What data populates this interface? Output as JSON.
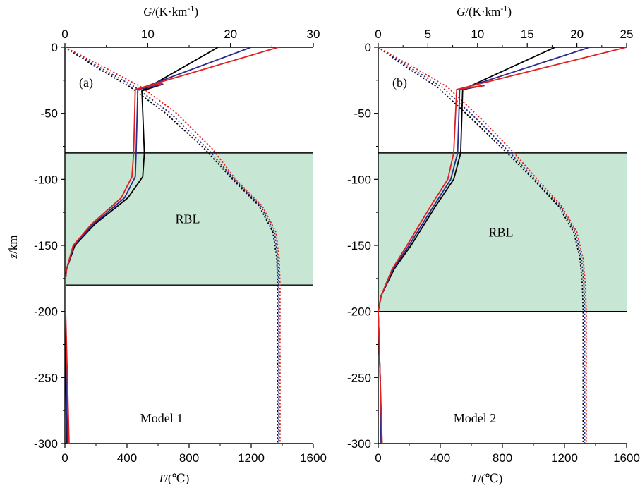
{
  "figure": {
    "ylabel_italic": "z",
    "ylabel_rest": "/km",
    "top_label_italic": "G",
    "top_label_rest": "/(K·km",
    "top_label_sup": "-1",
    "top_label_close": ")",
    "bottom_label_italic": "T",
    "bottom_label_rest": "/(℃)"
  },
  "chart_data": [
    {
      "type": "line",
      "panel_label": "(a)",
      "model_label": "Model 1",
      "band_label": "RBL",
      "ylim": [
        -300,
        0
      ],
      "yticks": [
        0,
        -50,
        -100,
        -150,
        -200,
        -250,
        -300
      ],
      "temp_axis": {
        "label": "T/(℃)",
        "lim": [
          0,
          1600
        ],
        "ticks": [
          0,
          400,
          800,
          1200,
          1600
        ]
      },
      "gradient_axis": {
        "label": "G/(K·km-1)",
        "lim": [
          0,
          30
        ],
        "ticks": [
          0,
          10,
          20,
          30
        ]
      },
      "rbl_band": [
        -80,
        -180
      ],
      "colors": {
        "black": "#000000",
        "blue": "#2b2b8f",
        "red": "#e02020",
        "band": "#c8e6d4"
      },
      "temperature_series": [
        {
          "name": "black",
          "color": "#000000",
          "style": "dotted",
          "points": [
            [
              0,
              0
            ],
            [
              200,
              -15
            ],
            [
              420,
              -30
            ],
            [
              650,
              -50
            ],
            [
              900,
              -77
            ],
            [
              1080,
              -100
            ],
            [
              1250,
              -120
            ],
            [
              1340,
              -140
            ],
            [
              1365,
              -160
            ],
            [
              1370,
              -180
            ],
            [
              1370,
              -200
            ],
            [
              1370,
              -250
            ],
            [
              1370,
              -300
            ]
          ]
        },
        {
          "name": "blue",
          "color": "#2b2b8f",
          "style": "dotted",
          "points": [
            [
              0,
              0
            ],
            [
              220,
              -15
            ],
            [
              450,
              -30
            ],
            [
              680,
              -50
            ],
            [
              920,
              -77
            ],
            [
              1090,
              -100
            ],
            [
              1260,
              -120
            ],
            [
              1350,
              -140
            ],
            [
              1372,
              -160
            ],
            [
              1378,
              -180
            ],
            [
              1378,
              -200
            ],
            [
              1378,
              -250
            ],
            [
              1378,
              -300
            ]
          ]
        },
        {
          "name": "red",
          "color": "#e02020",
          "style": "dotted",
          "points": [
            [
              0,
              0
            ],
            [
              250,
              -15
            ],
            [
              490,
              -30
            ],
            [
              720,
              -50
            ],
            [
              950,
              -77
            ],
            [
              1100,
              -100
            ],
            [
              1270,
              -120
            ],
            [
              1360,
              -140
            ],
            [
              1380,
              -160
            ],
            [
              1386,
              -180
            ],
            [
              1386,
              -200
            ],
            [
              1386,
              -250
            ],
            [
              1386,
              -300
            ]
          ]
        }
      ],
      "gradient_series": [
        {
          "name": "black",
          "color": "#000000",
          "style": "solid",
          "points": [
            [
              18.5,
              0
            ],
            [
              9.3,
              -33
            ],
            [
              9.6,
              -80
            ],
            [
              9.4,
              -98
            ],
            [
              7.6,
              -114
            ],
            [
              3.6,
              -134
            ],
            [
              1.2,
              -150
            ],
            [
              0.2,
              -168
            ],
            [
              0.0,
              -180
            ],
            [
              0.1,
              -250
            ],
            [
              0.2,
              -300
            ]
          ]
        },
        {
          "name": "blue",
          "color": "#2b2b8f",
          "style": "solid",
          "points": [
            [
              22.5,
              0
            ],
            [
              8.8,
              -32
            ],
            [
              8.6,
              -80
            ],
            [
              8.5,
              -98
            ],
            [
              7.2,
              -114
            ],
            [
              3.4,
              -134
            ],
            [
              1.1,
              -150
            ],
            [
              0.2,
              -168
            ],
            [
              0.0,
              -180
            ],
            [
              0.2,
              -250
            ],
            [
              0.3,
              -300
            ]
          ]
        },
        {
          "name": "red",
          "color": "#e02020",
          "style": "solid",
          "points": [
            [
              25.8,
              0
            ],
            [
              8.5,
              -32
            ],
            [
              8.3,
              -80
            ],
            [
              8.1,
              -98
            ],
            [
              6.8,
              -114
            ],
            [
              3.2,
              -134
            ],
            [
              1.0,
              -150
            ],
            [
              0.2,
              -168
            ],
            [
              0.0,
              -180
            ],
            [
              0.3,
              -250
            ],
            [
              0.5,
              -300
            ]
          ]
        }
      ],
      "knee_lines": [
        {
          "color": "#000000",
          "points": [
            [
              9.3,
              -33
            ],
            [
              11.8,
              -28
            ]
          ]
        },
        {
          "color": "#2b2b8f",
          "points": [
            [
              8.8,
              -32
            ],
            [
              11.9,
              -28
            ]
          ]
        },
        {
          "color": "#e02020",
          "points": [
            [
              8.5,
              -32
            ],
            [
              11.8,
              -27
            ]
          ]
        }
      ]
    },
    {
      "type": "line",
      "panel_label": "(b)",
      "model_label": "Model 2",
      "band_label": "RBL",
      "ylim": [
        -300,
        0
      ],
      "yticks": [
        0,
        -50,
        -100,
        -150,
        -200,
        -250,
        -300
      ],
      "temp_axis": {
        "label": "T/(℃)",
        "lim": [
          0,
          1600
        ],
        "ticks": [
          0,
          400,
          800,
          1200,
          1600
        ]
      },
      "gradient_axis": {
        "label": "G/(K·km-1)",
        "lim": [
          0,
          25
        ],
        "ticks": [
          0,
          5,
          10,
          15,
          20,
          25
        ]
      },
      "rbl_band": [
        -80,
        -200
      ],
      "colors": {
        "black": "#000000",
        "blue": "#2b2b8f",
        "red": "#e02020",
        "band": "#c8e6d4"
      },
      "temperature_series": [
        {
          "name": "black",
          "color": "#000000",
          "style": "dotted",
          "points": [
            [
              0,
              0
            ],
            [
              180,
              -15
            ],
            [
              380,
              -30
            ],
            [
              610,
              -55
            ],
            [
              830,
              -80
            ],
            [
              1000,
              -100
            ],
            [
              1160,
              -120
            ],
            [
              1260,
              -140
            ],
            [
              1300,
              -160
            ],
            [
              1315,
              -180
            ],
            [
              1320,
              -200
            ],
            [
              1320,
              -250
            ],
            [
              1320,
              -300
            ]
          ]
        },
        {
          "name": "blue",
          "color": "#2b2b8f",
          "style": "dotted",
          "points": [
            [
              0,
              0
            ],
            [
              200,
              -15
            ],
            [
              410,
              -30
            ],
            [
              640,
              -55
            ],
            [
              850,
              -80
            ],
            [
              1010,
              -100
            ],
            [
              1170,
              -120
            ],
            [
              1270,
              -140
            ],
            [
              1310,
              -160
            ],
            [
              1325,
              -180
            ],
            [
              1330,
              -200
            ],
            [
              1330,
              -250
            ],
            [
              1330,
              -300
            ]
          ]
        },
        {
          "name": "red",
          "color": "#e02020",
          "style": "dotted",
          "points": [
            [
              0,
              0
            ],
            [
              225,
              -15
            ],
            [
              445,
              -30
            ],
            [
              670,
              -55
            ],
            [
              875,
              -80
            ],
            [
              1025,
              -100
            ],
            [
              1180,
              -120
            ],
            [
              1280,
              -140
            ],
            [
              1320,
              -160
            ],
            [
              1335,
              -180
            ],
            [
              1340,
              -200
            ],
            [
              1340,
              -250
            ],
            [
              1340,
              -300
            ]
          ]
        }
      ],
      "gradient_series": [
        {
          "name": "black",
          "color": "#000000",
          "style": "solid",
          "points": [
            [
              17.8,
              0
            ],
            [
              8.5,
              -32
            ],
            [
              8.3,
              -80
            ],
            [
              7.6,
              -100
            ],
            [
              5.8,
              -120
            ],
            [
              3.3,
              -150
            ],
            [
              1.6,
              -168
            ],
            [
              0.3,
              -188
            ],
            [
              0.0,
              -200
            ],
            [
              0.2,
              -250
            ],
            [
              0.3,
              -300
            ]
          ]
        },
        {
          "name": "blue",
          "color": "#2b2b8f",
          "style": "solid",
          "points": [
            [
              21.3,
              0
            ],
            [
              8.2,
              -32
            ],
            [
              8.0,
              -80
            ],
            [
              7.3,
              -100
            ],
            [
              5.6,
              -120
            ],
            [
              3.1,
              -150
            ],
            [
              1.5,
              -168
            ],
            [
              0.3,
              -188
            ],
            [
              0.0,
              -200
            ],
            [
              0.2,
              -250
            ],
            [
              0.3,
              -300
            ]
          ]
        },
        {
          "name": "red",
          "color": "#e02020",
          "style": "solid",
          "points": [
            [
              25.0,
              0
            ],
            [
              7.9,
              -32
            ],
            [
              7.6,
              -80
            ],
            [
              7.0,
              -100
            ],
            [
              5.3,
              -120
            ],
            [
              2.9,
              -150
            ],
            [
              1.4,
              -168
            ],
            [
              0.3,
              -188
            ],
            [
              0.0,
              -200
            ],
            [
              0.2,
              -250
            ],
            [
              0.4,
              -300
            ]
          ]
        }
      ],
      "knee_lines": [
        {
          "color": "#000000",
          "points": [
            [
              8.5,
              -32
            ],
            [
              10.6,
              -29
            ]
          ]
        },
        {
          "color": "#2b2b8f",
          "points": [
            [
              8.2,
              -32
            ],
            [
              10.7,
              -29
            ]
          ]
        },
        {
          "color": "#e02020",
          "points": [
            [
              7.9,
              -32
            ],
            [
              10.6,
              -29
            ]
          ]
        }
      ]
    }
  ]
}
